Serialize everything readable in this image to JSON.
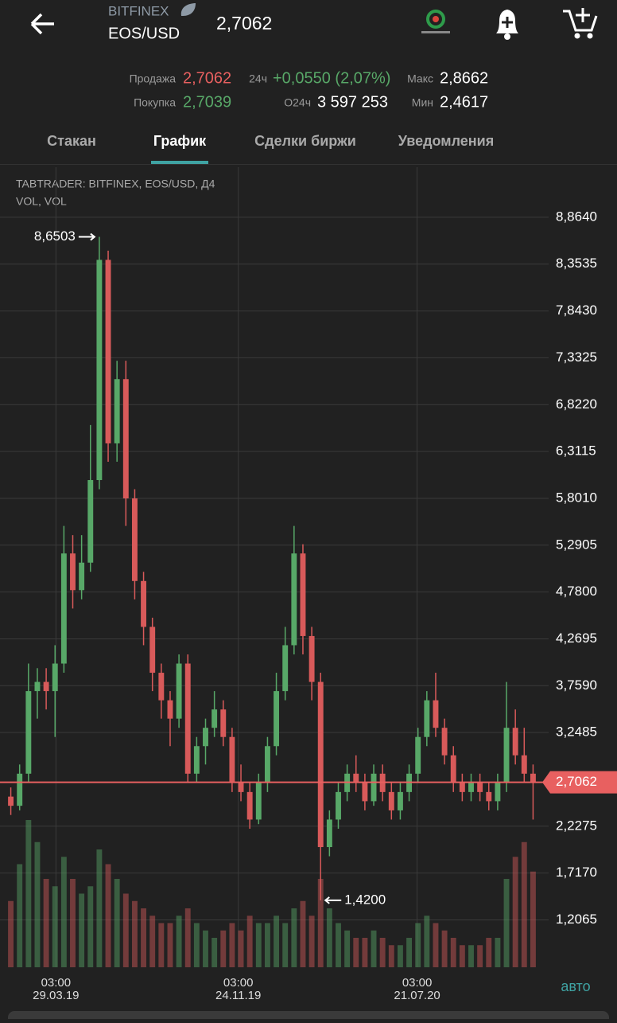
{
  "header": {
    "exchange": "BITFINEX",
    "pair": "EOS/USD",
    "price": "2,7062"
  },
  "stats": {
    "sell_label": "Продажа",
    "sell": "2,7062",
    "buy_label": "Покупка",
    "buy": "2,7039",
    "change_label": "24ч",
    "change": "+0,0550 (2,07%)",
    "volume_label": "О24ч",
    "volume": "3 597 253",
    "high_label": "Макс",
    "high": "2,8662",
    "low_label": "Мин",
    "low": "2,4617"
  },
  "tabs": [
    "Стакан",
    "График",
    "Сделки биржи",
    "Уведомления"
  ],
  "chart_data": {
    "type": "candlestick",
    "title": "TABTRADER: BITFINEX, EOS/USD, Д4",
    "subtitle": "VOL, VOL",
    "open": [
      2.55,
      2.45,
      2.8,
      3.7,
      3.8,
      3.7,
      4.0,
      5.2,
      4.8,
      5.1,
      6.0,
      8.4,
      6.4,
      7.1,
      5.8,
      4.9,
      4.4,
      3.9,
      3.6,
      3.4,
      4.0,
      2.8,
      3.1,
      3.3,
      3.5,
      3.2,
      2.7,
      2.6,
      2.3,
      2.7,
      3.1,
      3.7,
      4.2,
      5.2,
      4.3,
      3.8,
      2.0,
      2.3,
      2.6,
      2.8,
      2.7,
      2.5,
      2.8,
      2.6,
      2.4,
      2.6,
      2.8,
      3.2,
      3.6,
      3.3,
      3.0,
      2.7,
      2.6,
      2.7,
      2.6,
      2.5,
      2.7,
      3.3,
      3.0,
      2.8
    ],
    "high": [
      2.65,
      2.9,
      4.0,
      3.95,
      3.95,
      4.2,
      5.5,
      5.4,
      5.4,
      6.6,
      8.6503,
      8.5,
      7.3,
      7.3,
      5.9,
      5.0,
      4.5,
      4.0,
      3.7,
      4.1,
      4.1,
      3.2,
      3.4,
      3.7,
      3.6,
      3.3,
      2.9,
      2.7,
      2.8,
      3.2,
      3.9,
      4.4,
      5.5,
      5.3,
      4.4,
      3.9,
      2.4,
      2.7,
      2.9,
      3.0,
      2.8,
      2.9,
      2.9,
      2.7,
      2.7,
      2.9,
      3.3,
      3.7,
      3.9,
      3.4,
      3.1,
      2.8,
      2.8,
      2.8,
      2.7,
      2.8,
      3.8,
      3.5,
      3.3,
      2.9
    ],
    "low": [
      2.35,
      2.4,
      2.7,
      3.4,
      3.5,
      3.2,
      3.9,
      4.6,
      4.7,
      5.0,
      5.9,
      6.2,
      6.2,
      5.5,
      4.7,
      4.2,
      3.7,
      3.4,
      3.1,
      3.3,
      2.7,
      2.7,
      2.9,
      3.2,
      3.1,
      2.6,
      2.5,
      2.2,
      2.25,
      2.6,
      3.0,
      3.6,
      4.1,
      4.1,
      3.6,
      1.42,
      1.9,
      2.2,
      2.5,
      2.6,
      2.4,
      2.45,
      2.5,
      2.3,
      2.3,
      2.5,
      2.7,
      3.1,
      3.2,
      2.9,
      2.6,
      2.5,
      2.5,
      2.5,
      2.4,
      2.4,
      2.6,
      2.9,
      2.7,
      2.3
    ],
    "close": [
      2.45,
      2.8,
      3.7,
      3.8,
      3.7,
      4.0,
      5.2,
      4.8,
      5.1,
      6.0,
      8.4,
      6.4,
      7.1,
      5.8,
      4.9,
      4.4,
      3.9,
      3.6,
      3.4,
      4.0,
      2.8,
      3.1,
      3.3,
      3.5,
      3.2,
      2.7,
      2.6,
      2.3,
      2.7,
      3.1,
      3.7,
      4.2,
      5.2,
      4.3,
      3.8,
      2.0,
      2.3,
      2.6,
      2.8,
      2.7,
      2.5,
      2.8,
      2.6,
      2.4,
      2.6,
      2.8,
      3.2,
      3.6,
      3.3,
      3.0,
      2.7,
      2.6,
      2.7,
      2.6,
      2.5,
      2.7,
      3.3,
      3.0,
      2.8,
      2.7
    ],
    "volume": [
      45,
      70,
      100,
      85,
      60,
      55,
      75,
      60,
      50,
      55,
      80,
      70,
      60,
      50,
      45,
      40,
      35,
      30,
      30,
      35,
      40,
      30,
      25,
      20,
      25,
      30,
      25,
      35,
      30,
      30,
      35,
      30,
      40,
      45,
      35,
      60,
      40,
      30,
      25,
      20,
      20,
      25,
      20,
      15,
      15,
      20,
      30,
      35,
      30,
      25,
      20,
      15,
      15,
      15,
      20,
      20,
      60,
      75,
      85,
      65
    ],
    "vlim": [
      0,
      100
    ],
    "xlim": [
      -0.5,
      59.5
    ],
    "xticks": [
      {
        "value": 5.1,
        "label": "03:00",
        "date": "29.03.19"
      },
      {
        "value": 25.7,
        "label": "03:00",
        "date": "24.11.19"
      },
      {
        "value": 45.9,
        "label": "03:00",
        "date": "21.07.20"
      }
    ],
    "ylim": [
      0.69,
      9.41
    ],
    "yticks": [
      {
        "value": 8.864,
        "label": "8,8640"
      },
      {
        "value": 8.3535,
        "label": "8,3535"
      },
      {
        "value": 7.843,
        "label": "7,8430"
      },
      {
        "value": 7.3325,
        "label": "7,3325"
      },
      {
        "value": 6.822,
        "label": "6,8220"
      },
      {
        "value": 6.3115,
        "label": "6,3115"
      },
      {
        "value": 5.801,
        "label": "5,8010"
      },
      {
        "value": 5.2905,
        "label": "5,2905"
      },
      {
        "value": 4.78,
        "label": "4,7800"
      },
      {
        "value": 4.2695,
        "label": "4,2695"
      },
      {
        "value": 3.759,
        "label": "3,7590"
      },
      {
        "value": 3.2485,
        "label": "3,2485"
      },
      {
        "value": 2.2275,
        "label": "2,2275"
      },
      {
        "value": 1.717,
        "label": "1,7170"
      },
      {
        "value": 1.2065,
        "label": "1,2065"
      }
    ],
    "current_price": {
      "value": 2.7062,
      "label": "2,7062"
    },
    "annotations": [
      {
        "value": 8.6503,
        "label": "8,6503"
      },
      {
        "value": 1.42,
        "label": "1,4200"
      }
    ],
    "up_color": "#58a868",
    "down_color": "#d85a5a",
    "price_line_color": "#e86060",
    "grid": true
  },
  "scale_button": "авто"
}
